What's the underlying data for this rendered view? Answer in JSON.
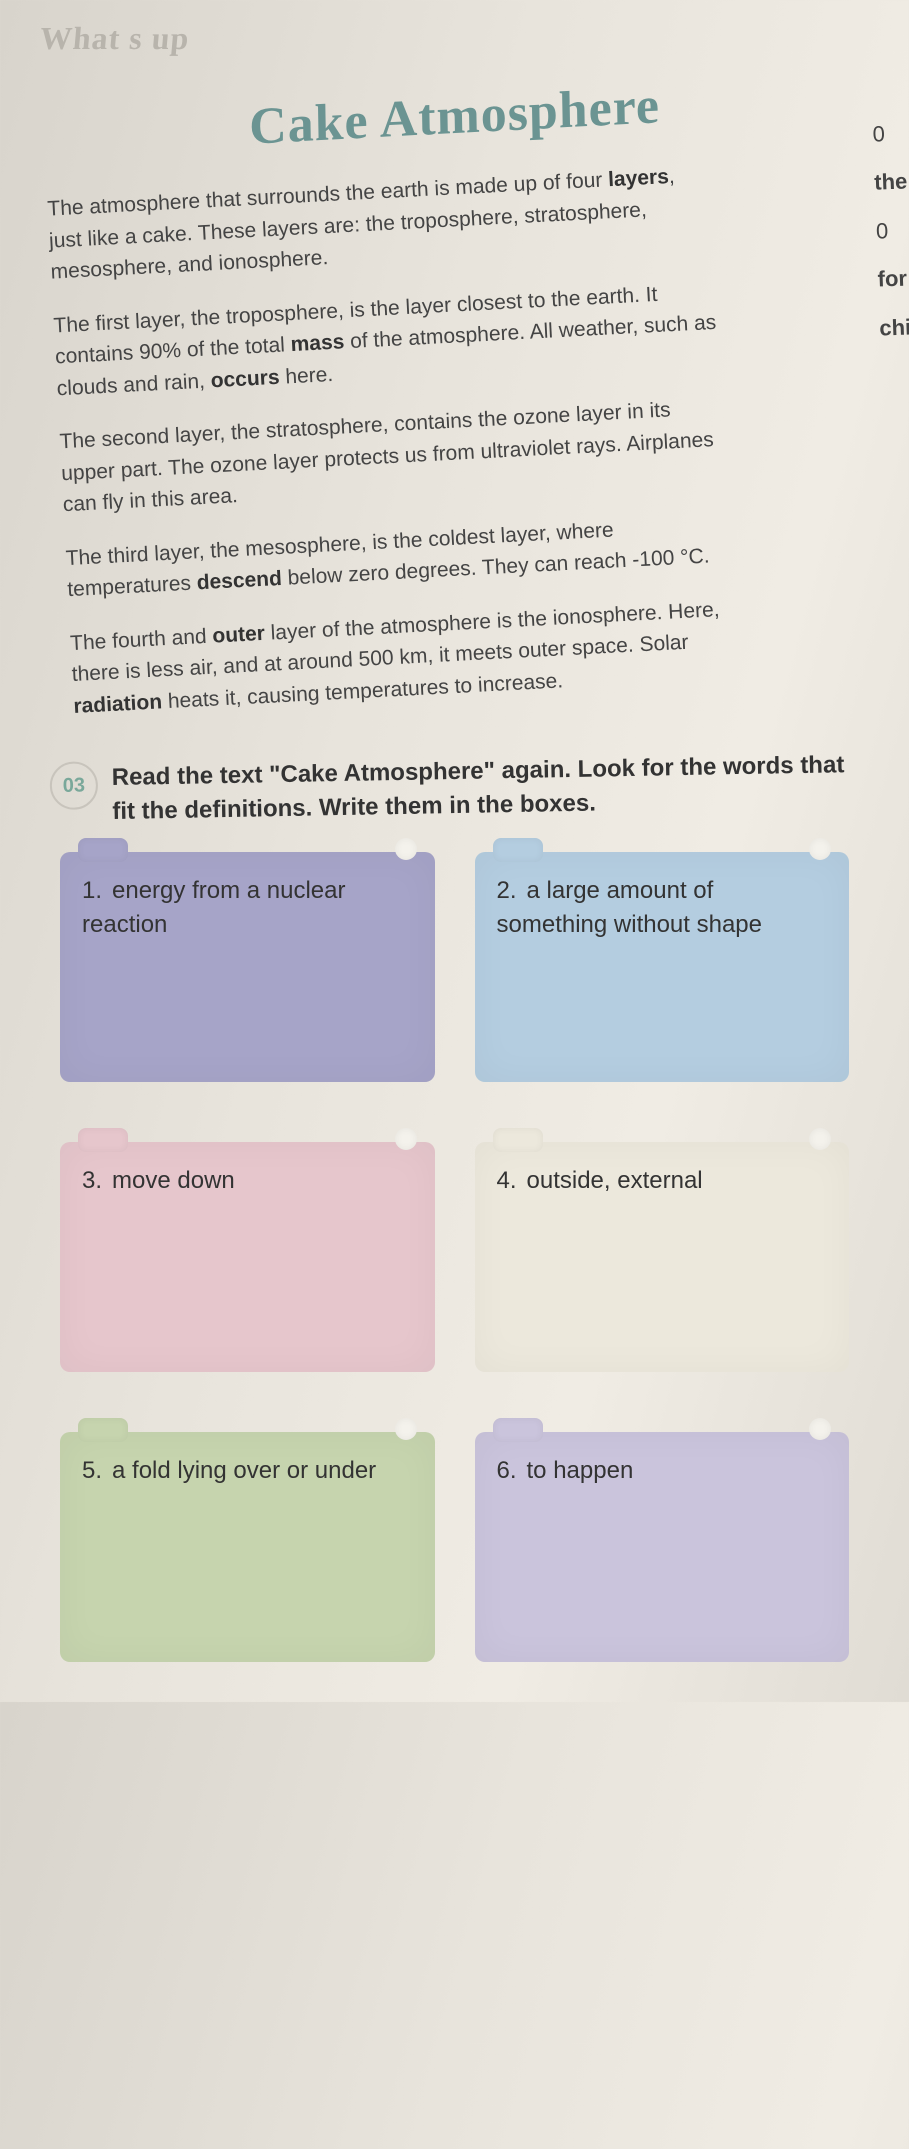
{
  "top_banner": "What s up",
  "title": "Cake Atmosphere",
  "paragraphs": {
    "p1_a": "The atmosphere that surrounds the earth is made up of four ",
    "p1_b": "layers",
    "p1_c": ", just like a cake. These layers are: the troposphere, stratosphere, mesosphere, and ionosphere.",
    "p2_a": "The first layer, the troposphere, is the layer closest to the earth. It contains 90% of the total ",
    "p2_b": "mass",
    "p2_c": " of the atmosphere. All weather, such as clouds and rain, ",
    "p2_d": "occurs",
    "p2_e": " here.",
    "p3": "The second layer, the stratosphere, contains the ozone layer in its upper part. The ozone layer protects us from ultraviolet rays. Airplanes can fly in this area.",
    "p4_a": "The third layer, the mesosphere, is the coldest layer, where temperatures ",
    "p4_b": "descend",
    "p4_c": " below zero degrees. They can reach -100 °C.",
    "p5_a": "The fourth and ",
    "p5_b": "outer",
    "p5_c": " layer of the atmosphere is the ionosphere. Here, there is less air, and at around 500 km, it meets outer space. Solar ",
    "p5_d": "radiation",
    "p5_e": " heats it, causing temperatures to increase."
  },
  "side": {
    "s1": "0",
    "s2": "the",
    "s3": "0",
    "s4": "for",
    "s5": "chi"
  },
  "instruction": {
    "badge": "03",
    "text": "Read the text \"Cake Atmosphere\" again. Look for the words that fit the definitions. Write them in the boxes."
  },
  "boxes": [
    {
      "num": "1.",
      "label": "energy from a nuclear reaction",
      "color": "c-purple"
    },
    {
      "num": "2.",
      "label": "a large amount of something without shape",
      "color": "c-blue"
    },
    {
      "num": "3.",
      "label": "move down",
      "color": "c-pink"
    },
    {
      "num": "4.",
      "label": "outside, external",
      "color": "c-cream"
    },
    {
      "num": "5.",
      "label": "a fold lying over or under",
      "color": "c-green"
    },
    {
      "num": "6.",
      "label": "to happen",
      "color": "c-lilac"
    }
  ],
  "colors": {
    "title": "#6b9492",
    "purple": "#a6a4c8",
    "blue": "#b4cde0",
    "pink": "#e6c6cc",
    "cream": "#ece8dc",
    "green": "#c6d4ae",
    "lilac": "#cac4dc"
  }
}
